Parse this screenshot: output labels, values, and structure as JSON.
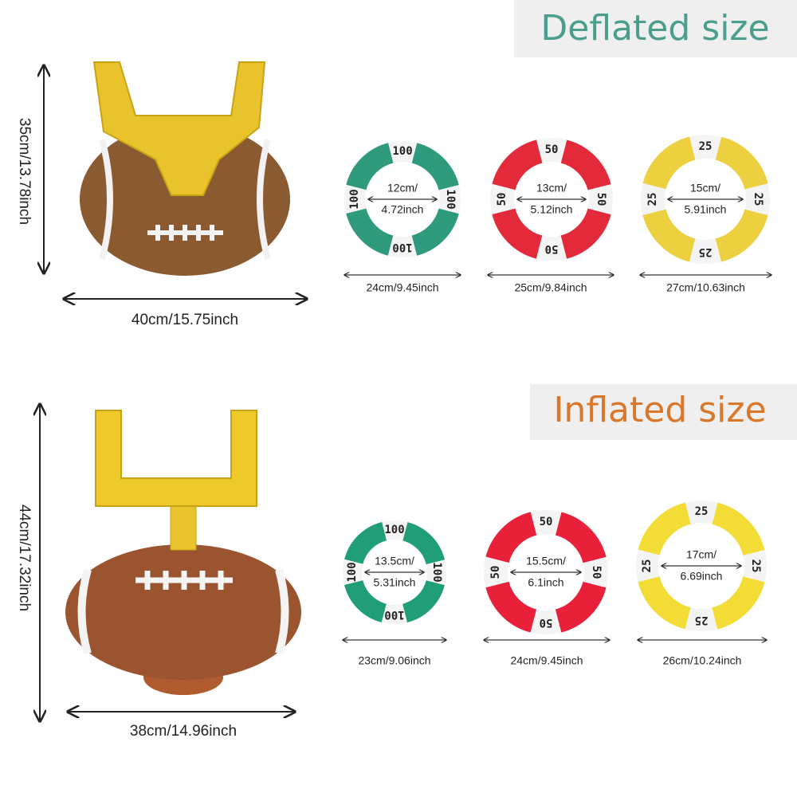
{
  "deflated": {
    "title": "Deflated size",
    "height": "35cm/13.78inch",
    "width": "40cm/15.75inch",
    "rings": [
      {
        "score": "100",
        "inner": [
          "12cm/",
          "4.72inch"
        ],
        "outer": "24cm/9.45inch"
      },
      {
        "score": "50",
        "inner": [
          "13cm/",
          "5.12inch"
        ],
        "outer": "25cm/9.84inch"
      },
      {
        "score": "25",
        "inner": [
          "15cm/",
          "5.91inch"
        ],
        "outer": "27cm/10.63inch"
      }
    ]
  },
  "inflated": {
    "title": "Inflated size",
    "height": "44cm/17.32inch",
    "width": "38cm/14.96inch",
    "rings": [
      {
        "score": "100",
        "inner": [
          "13.5cm/",
          "5.31inch"
        ],
        "outer": "23cm/9.06inch"
      },
      {
        "score": "50",
        "inner": [
          "15.5cm/",
          "6.1inch"
        ],
        "outer": "24cm/9.45inch"
      },
      {
        "score": "25",
        "inner": [
          "17cm/",
          "6.69inch"
        ],
        "outer": "26cm/10.24inch"
      }
    ]
  }
}
